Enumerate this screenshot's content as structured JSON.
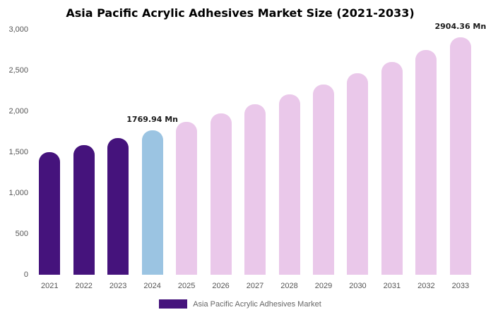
{
  "title": "Asia Pacific Acrylic Adhesives Market Size (2021-2033)",
  "legend": {
    "label": "Asia Pacific Acrylic Adhesives Market",
    "color": "#45137c"
  },
  "colors": {
    "historical_bar": "#45137c",
    "highlight_bar": "#9bc4e2",
    "forecast_bar": "#eac8ea",
    "axis_text": "#555555",
    "annotation_text": "#1a1a1a",
    "background": "#ffffff"
  },
  "chart_data": {
    "type": "bar",
    "title": "Asia Pacific Acrylic Adhesives Market Size (2021-2033)",
    "xlabel": "",
    "ylabel": "",
    "ylim": [
      0,
      3000
    ],
    "yticks": [
      0,
      500,
      1000,
      1500,
      2000,
      2500,
      3000
    ],
    "ytick_labels": [
      "0",
      "500",
      "1,000",
      "1,500",
      "2,000",
      "2,500",
      "3,000"
    ],
    "grid": false,
    "legend_position": "bottom",
    "unit": "Mn",
    "categories": [
      "2021",
      "2022",
      "2023",
      "2024",
      "2025",
      "2026",
      "2027",
      "2028",
      "2029",
      "2030",
      "2031",
      "2032",
      "2033"
    ],
    "values": [
      1500,
      1585,
      1675,
      1769.94,
      1870,
      1976,
      2088,
      2206,
      2331,
      2463,
      2602,
      2749,
      2904.36
    ],
    "bar_colors": [
      "#45137c",
      "#45137c",
      "#45137c",
      "#9bc4e2",
      "#eac8ea",
      "#eac8ea",
      "#eac8ea",
      "#eac8ea",
      "#eac8ea",
      "#eac8ea",
      "#eac8ea",
      "#eac8ea",
      "#eac8ea"
    ],
    "annotations": [
      {
        "category": "2024",
        "text": "1769.94 Mn"
      },
      {
        "category": "2033",
        "text": "2904.36 Mn"
      }
    ]
  }
}
